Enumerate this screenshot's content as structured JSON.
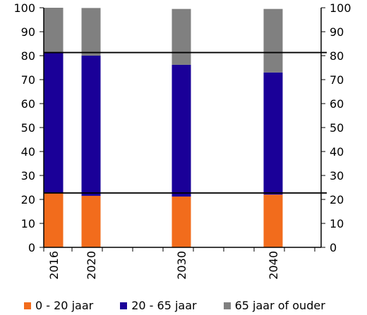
{
  "chart_data": {
    "type": "bar",
    "stacked": true,
    "categories": [
      "2016",
      "2020",
      "2030",
      "2040"
    ],
    "series": [
      {
        "name": "0 - 20 jaar",
        "color": "#f26c1c",
        "values": [
          22.7,
          21.5,
          21.2,
          22.0
        ]
      },
      {
        "name": "20 - 65 jaar",
        "color": "#1a0098",
        "values": [
          58.6,
          58.5,
          55.0,
          51.0
        ]
      },
      {
        "name": "65 jaar of ouder",
        "color": "#808080",
        "values": [
          18.7,
          19.9,
          23.3,
          26.5
        ]
      }
    ],
    "reference_lines": [
      22.7,
      81.3
    ],
    "ylim": [
      0,
      100
    ],
    "yticks": [
      0,
      10,
      20,
      30,
      40,
      50,
      60,
      70,
      80,
      90,
      100
    ],
    "secondary_y_axis": true,
    "legend_position": "bottom",
    "xlabel": "",
    "ylabel": ""
  }
}
